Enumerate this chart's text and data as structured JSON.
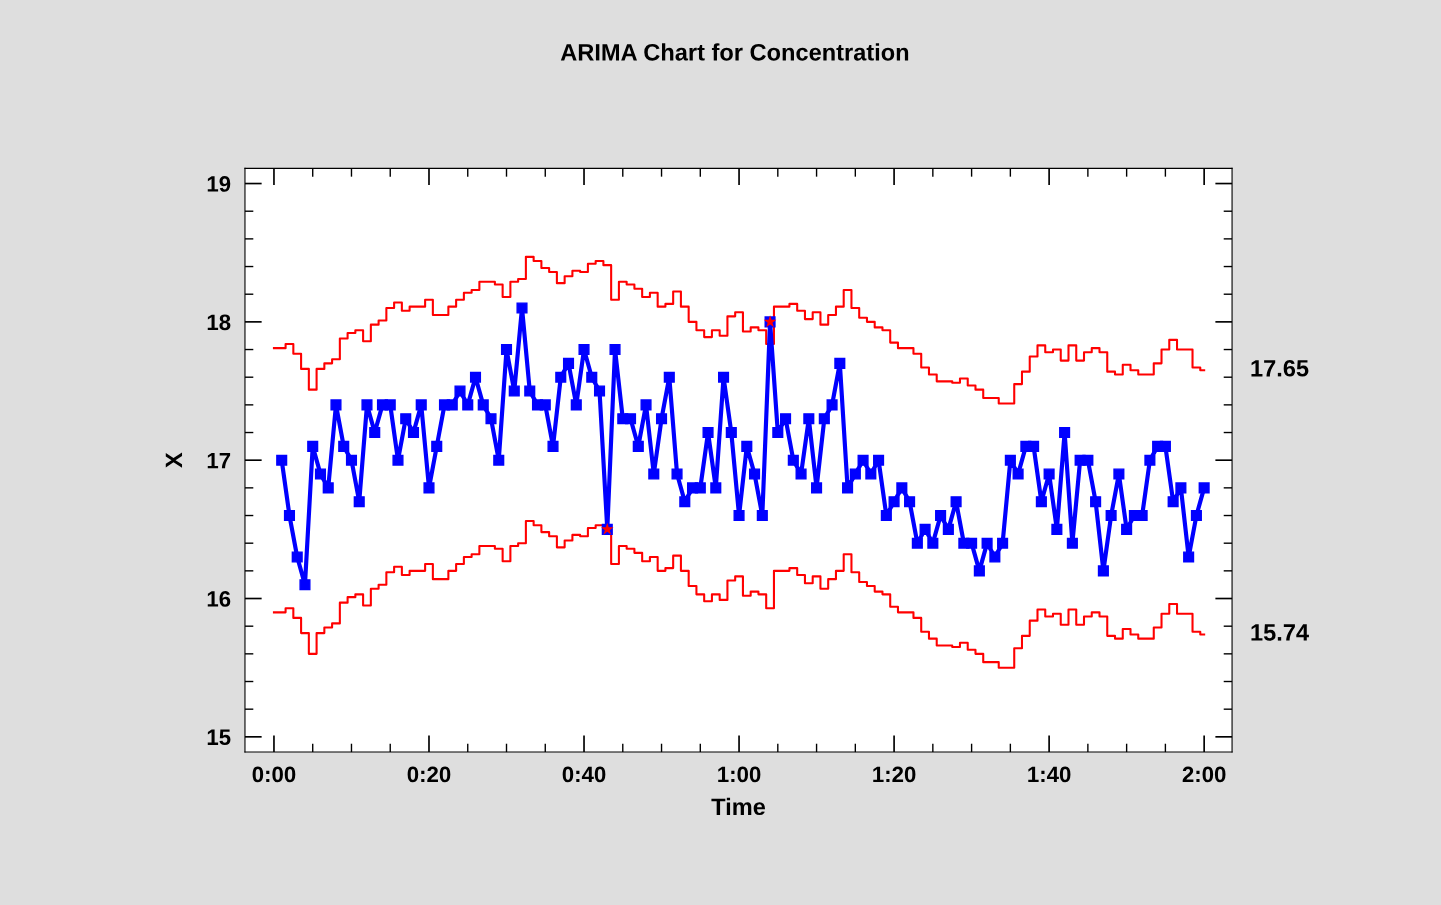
{
  "chart_data": {
    "type": "line",
    "title": "ARIMA Chart for Concentration",
    "xlabel": "Time",
    "ylabel": "X",
    "xlim": [
      -3.74,
      123.6
    ],
    "ylim": [
      14.89,
      19.11
    ],
    "xticks": [
      {
        "value": 0,
        "label": "0:00"
      },
      {
        "value": 20,
        "label": "0:20"
      },
      {
        "value": 40,
        "label": "0:40"
      },
      {
        "value": 60,
        "label": "1:00"
      },
      {
        "value": 80,
        "label": "1:20"
      },
      {
        "value": 100,
        "label": "1:40"
      },
      {
        "value": 120,
        "label": "2:00"
      }
    ],
    "yticks": [
      15,
      16,
      17,
      18,
      19
    ],
    "grid": false,
    "annotations": [
      {
        "text": "17.65",
        "x": 120,
        "y": 17.65
      },
      {
        "text": "15.74",
        "x": 120,
        "y": 15.74
      }
    ],
    "series": [
      {
        "type": "step",
        "color": "#ff0000",
        "marker": "none",
        "x": [
          0,
          1,
          2,
          3,
          4,
          5,
          6,
          7,
          8,
          9,
          10,
          11,
          12,
          13,
          14,
          15,
          16,
          17,
          18,
          19,
          20,
          21,
          22,
          23,
          24,
          25,
          26,
          27,
          28,
          29,
          30,
          31,
          32,
          33,
          34,
          35,
          36,
          37,
          38,
          39,
          40,
          41,
          42,
          43,
          44,
          45,
          46,
          47,
          48,
          49,
          50,
          51,
          52,
          53,
          54,
          55,
          56,
          57,
          58,
          59,
          60,
          61,
          62,
          63,
          64,
          65,
          66,
          67,
          68,
          69,
          70,
          71,
          72,
          73,
          74,
          75,
          76,
          77,
          78,
          79,
          80,
          81,
          82,
          83,
          84,
          85,
          86,
          87,
          88,
          89,
          90,
          91,
          92,
          93,
          94,
          95,
          96,
          97,
          98,
          99,
          100,
          101,
          102,
          103,
          104,
          105,
          106,
          107,
          108,
          109,
          110,
          111,
          112,
          113,
          114,
          115,
          116,
          117,
          118,
          119,
          120
        ],
        "values": [
          17.81,
          17.81,
          17.84,
          17.77,
          17.66,
          17.51,
          17.66,
          17.7,
          17.73,
          17.88,
          17.92,
          17.94,
          17.86,
          17.98,
          18.01,
          18.1,
          18.14,
          18.08,
          18.11,
          18.11,
          18.16,
          18.05,
          18.05,
          18.11,
          18.16,
          18.21,
          18.23,
          18.29,
          18.29,
          18.27,
          18.18,
          18.29,
          18.31,
          18.47,
          18.44,
          18.39,
          18.36,
          18.28,
          18.33,
          18.37,
          18.36,
          18.42,
          18.44,
          18.41,
          18.16,
          18.29,
          18.27,
          18.24,
          18.18,
          18.21,
          18.11,
          18.13,
          18.22,
          18.11,
          18.0,
          17.94,
          17.89,
          17.94,
          17.9,
          18.04,
          18.07,
          17.93,
          17.96,
          17.94,
          17.84,
          18.11,
          18.11,
          18.13,
          18.08,
          18.02,
          18.07,
          17.98,
          18.05,
          18.11,
          18.23,
          18.1,
          18.03,
          18.0,
          17.96,
          17.94,
          17.85,
          17.81,
          17.81,
          17.77,
          17.67,
          17.62,
          17.57,
          17.57,
          17.56,
          17.59,
          17.54,
          17.51,
          17.45,
          17.45,
          17.41,
          17.41,
          17.55,
          17.64,
          17.75,
          17.83,
          17.78,
          17.8,
          17.72,
          17.83,
          17.72,
          17.78,
          17.81,
          17.78,
          17.64,
          17.62,
          17.69,
          17.65,
          17.62,
          17.62,
          17.7,
          17.8,
          17.87,
          17.8,
          17.8,
          17.67,
          17.65
        ]
      },
      {
        "type": "step",
        "color": "#ff0000",
        "marker": "none",
        "x": [
          0,
          1,
          2,
          3,
          4,
          5,
          6,
          7,
          8,
          9,
          10,
          11,
          12,
          13,
          14,
          15,
          16,
          17,
          18,
          19,
          20,
          21,
          22,
          23,
          24,
          25,
          26,
          27,
          28,
          29,
          30,
          31,
          32,
          33,
          34,
          35,
          36,
          37,
          38,
          39,
          40,
          41,
          42,
          43,
          44,
          45,
          46,
          47,
          48,
          49,
          50,
          51,
          52,
          53,
          54,
          55,
          56,
          57,
          58,
          59,
          60,
          61,
          62,
          63,
          64,
          65,
          66,
          67,
          68,
          69,
          70,
          71,
          72,
          73,
          74,
          75,
          76,
          77,
          78,
          79,
          80,
          81,
          82,
          83,
          84,
          85,
          86,
          87,
          88,
          89,
          90,
          91,
          92,
          93,
          94,
          95,
          96,
          97,
          98,
          99,
          100,
          101,
          102,
          103,
          104,
          105,
          106,
          107,
          108,
          109,
          110,
          111,
          112,
          113,
          114,
          115,
          116,
          117,
          118,
          119,
          120
        ],
        "values": [
          15.9,
          15.9,
          15.93,
          15.86,
          15.75,
          15.6,
          15.75,
          15.79,
          15.82,
          15.97,
          16.01,
          16.03,
          15.95,
          16.07,
          16.1,
          16.19,
          16.23,
          16.17,
          16.2,
          16.2,
          16.25,
          16.14,
          16.14,
          16.2,
          16.25,
          16.3,
          16.32,
          16.38,
          16.38,
          16.36,
          16.27,
          16.38,
          16.4,
          16.56,
          16.53,
          16.48,
          16.45,
          16.37,
          16.42,
          16.46,
          16.45,
          16.51,
          16.53,
          16.5,
          16.25,
          16.38,
          16.36,
          16.33,
          16.27,
          16.3,
          16.2,
          16.22,
          16.31,
          16.2,
          16.09,
          16.03,
          15.98,
          16.03,
          15.99,
          16.13,
          16.16,
          16.02,
          16.05,
          16.03,
          15.93,
          16.2,
          16.2,
          16.22,
          16.17,
          16.11,
          16.16,
          16.07,
          16.14,
          16.2,
          16.32,
          16.19,
          16.12,
          16.09,
          16.05,
          16.03,
          15.94,
          15.9,
          15.9,
          15.86,
          15.76,
          15.71,
          15.66,
          15.66,
          15.65,
          15.68,
          15.63,
          15.6,
          15.54,
          15.54,
          15.5,
          15.5,
          15.64,
          15.73,
          15.84,
          15.92,
          15.87,
          15.89,
          15.81,
          15.92,
          15.81,
          15.87,
          15.9,
          15.87,
          15.73,
          15.71,
          15.78,
          15.74,
          15.71,
          15.71,
          15.79,
          15.89,
          15.96,
          15.89,
          15.89,
          15.76,
          15.74
        ]
      },
      {
        "color": "#0000ff",
        "marker": "square",
        "x": [
          1,
          2,
          3,
          4,
          5,
          6,
          7,
          8,
          9,
          10,
          11,
          12,
          13,
          14,
          15,
          16,
          17,
          18,
          19,
          20,
          21,
          22,
          23,
          24,
          25,
          26,
          27,
          28,
          29,
          30,
          31,
          32,
          33,
          34,
          35,
          36,
          37,
          38,
          39,
          40,
          41,
          42,
          43,
          44,
          45,
          46,
          47,
          48,
          49,
          50,
          51,
          52,
          53,
          54,
          55,
          56,
          57,
          58,
          59,
          60,
          61,
          62,
          63,
          64,
          65,
          66,
          67,
          68,
          69,
          70,
          71,
          72,
          73,
          74,
          75,
          76,
          77,
          78,
          79,
          80,
          81,
          82,
          83,
          84,
          85,
          86,
          87,
          88,
          89,
          90,
          91,
          92,
          93,
          94,
          95,
          96,
          97,
          98,
          99,
          100,
          101,
          102,
          103,
          104,
          105,
          106,
          107,
          108,
          109,
          110,
          111,
          112,
          113,
          114,
          115,
          116,
          117,
          118,
          119,
          120
        ],
        "values": [
          17.0,
          16.6,
          16.3,
          16.1,
          17.1,
          16.9,
          16.8,
          17.4,
          17.1,
          17.0,
          16.7,
          17.4,
          17.2,
          17.4,
          17.4,
          17.0,
          17.3,
          17.2,
          17.4,
          16.8,
          17.1,
          17.4,
          17.4,
          17.5,
          17.4,
          17.6,
          17.4,
          17.3,
          17.0,
          17.8,
          17.5,
          18.1,
          17.5,
          17.4,
          17.4,
          17.1,
          17.6,
          17.7,
          17.4,
          17.8,
          17.6,
          17.5,
          16.5,
          17.8,
          17.3,
          17.3,
          17.1,
          17.4,
          16.9,
          17.3,
          17.6,
          16.9,
          16.7,
          16.8,
          16.8,
          17.2,
          16.8,
          17.6,
          17.2,
          16.6,
          17.1,
          16.9,
          16.6,
          18.0,
          17.2,
          17.3,
          17.0,
          16.9,
          17.3,
          16.8,
          17.3,
          17.4,
          17.7,
          16.8,
          16.9,
          17.0,
          16.9,
          17.0,
          16.6,
          16.7,
          16.8,
          16.7,
          16.4,
          16.5,
          16.4,
          16.6,
          16.5,
          16.7,
          16.4,
          16.4,
          16.2,
          16.4,
          16.3,
          16.4,
          17.0,
          16.9,
          17.1,
          17.1,
          16.7,
          16.9,
          16.5,
          17.2,
          16.4,
          17.0,
          17.0,
          16.7,
          16.2,
          16.6,
          16.9,
          16.5,
          16.6,
          16.6,
          17.0,
          17.1,
          17.1,
          16.7,
          16.8,
          16.3,
          16.6,
          16.8
        ]
      },
      {
        "type": "scatter",
        "color": "#ff0000",
        "marker": "star",
        "x": [
          43,
          64
        ],
        "values": [
          16.5,
          18.0
        ]
      }
    ]
  }
}
